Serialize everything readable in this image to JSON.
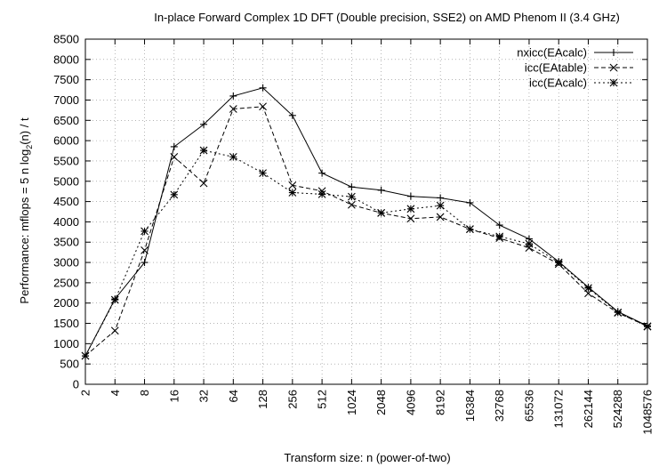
{
  "chart_data": {
    "type": "line",
    "title": "In-place Forward Complex 1D DFT (Double precision, SSE2) on AMD Phenom II (3.4 GHz)",
    "xlabel": "Transform size: n (power-of-two)",
    "ylabel_parts": [
      "Performance: mflops = 5 n log",
      "2",
      "(n) / t"
    ],
    "categories": [
      "2",
      "4",
      "8",
      "16",
      "32",
      "64",
      "128",
      "256",
      "512",
      "1024",
      "2048",
      "4096",
      "8192",
      "16384",
      "32768",
      "65536",
      "131072",
      "262144",
      "524288",
      "1048576"
    ],
    "ylim": [
      0,
      8500
    ],
    "yticks": [
      0,
      500,
      1000,
      1500,
      2000,
      2500,
      3000,
      3500,
      4000,
      4500,
      5000,
      5500,
      6000,
      6500,
      7000,
      7500,
      8000,
      8500
    ],
    "grid": true,
    "legend_position": "top-right",
    "series": [
      {
        "name": "nxicc(EAcalc)",
        "dash": "solid",
        "marker": "plus",
        "values": [
          700,
          2100,
          3000,
          5850,
          6400,
          7100,
          7300,
          6620,
          5200,
          4860,
          4780,
          4630,
          4590,
          4470,
          3920,
          3580,
          3020,
          2390,
          1790,
          1440
        ]
      },
      {
        "name": "icc(EAtable)",
        "dash": "dashed",
        "marker": "cross",
        "values": [
          700,
          1320,
          3300,
          5600,
          4950,
          6780,
          6840,
          4900,
          4760,
          4420,
          4220,
          4080,
          4120,
          3820,
          3600,
          3360,
          2960,
          2240,
          1760,
          1430
        ]
      },
      {
        "name": "icc(EAcalc)",
        "dash": "dotted",
        "marker": "star",
        "values": [
          700,
          2080,
          3770,
          4670,
          5760,
          5600,
          5200,
          4720,
          4680,
          4620,
          4220,
          4320,
          4400,
          3820,
          3640,
          3460,
          3000,
          2370,
          1770,
          1420
        ]
      }
    ]
  }
}
